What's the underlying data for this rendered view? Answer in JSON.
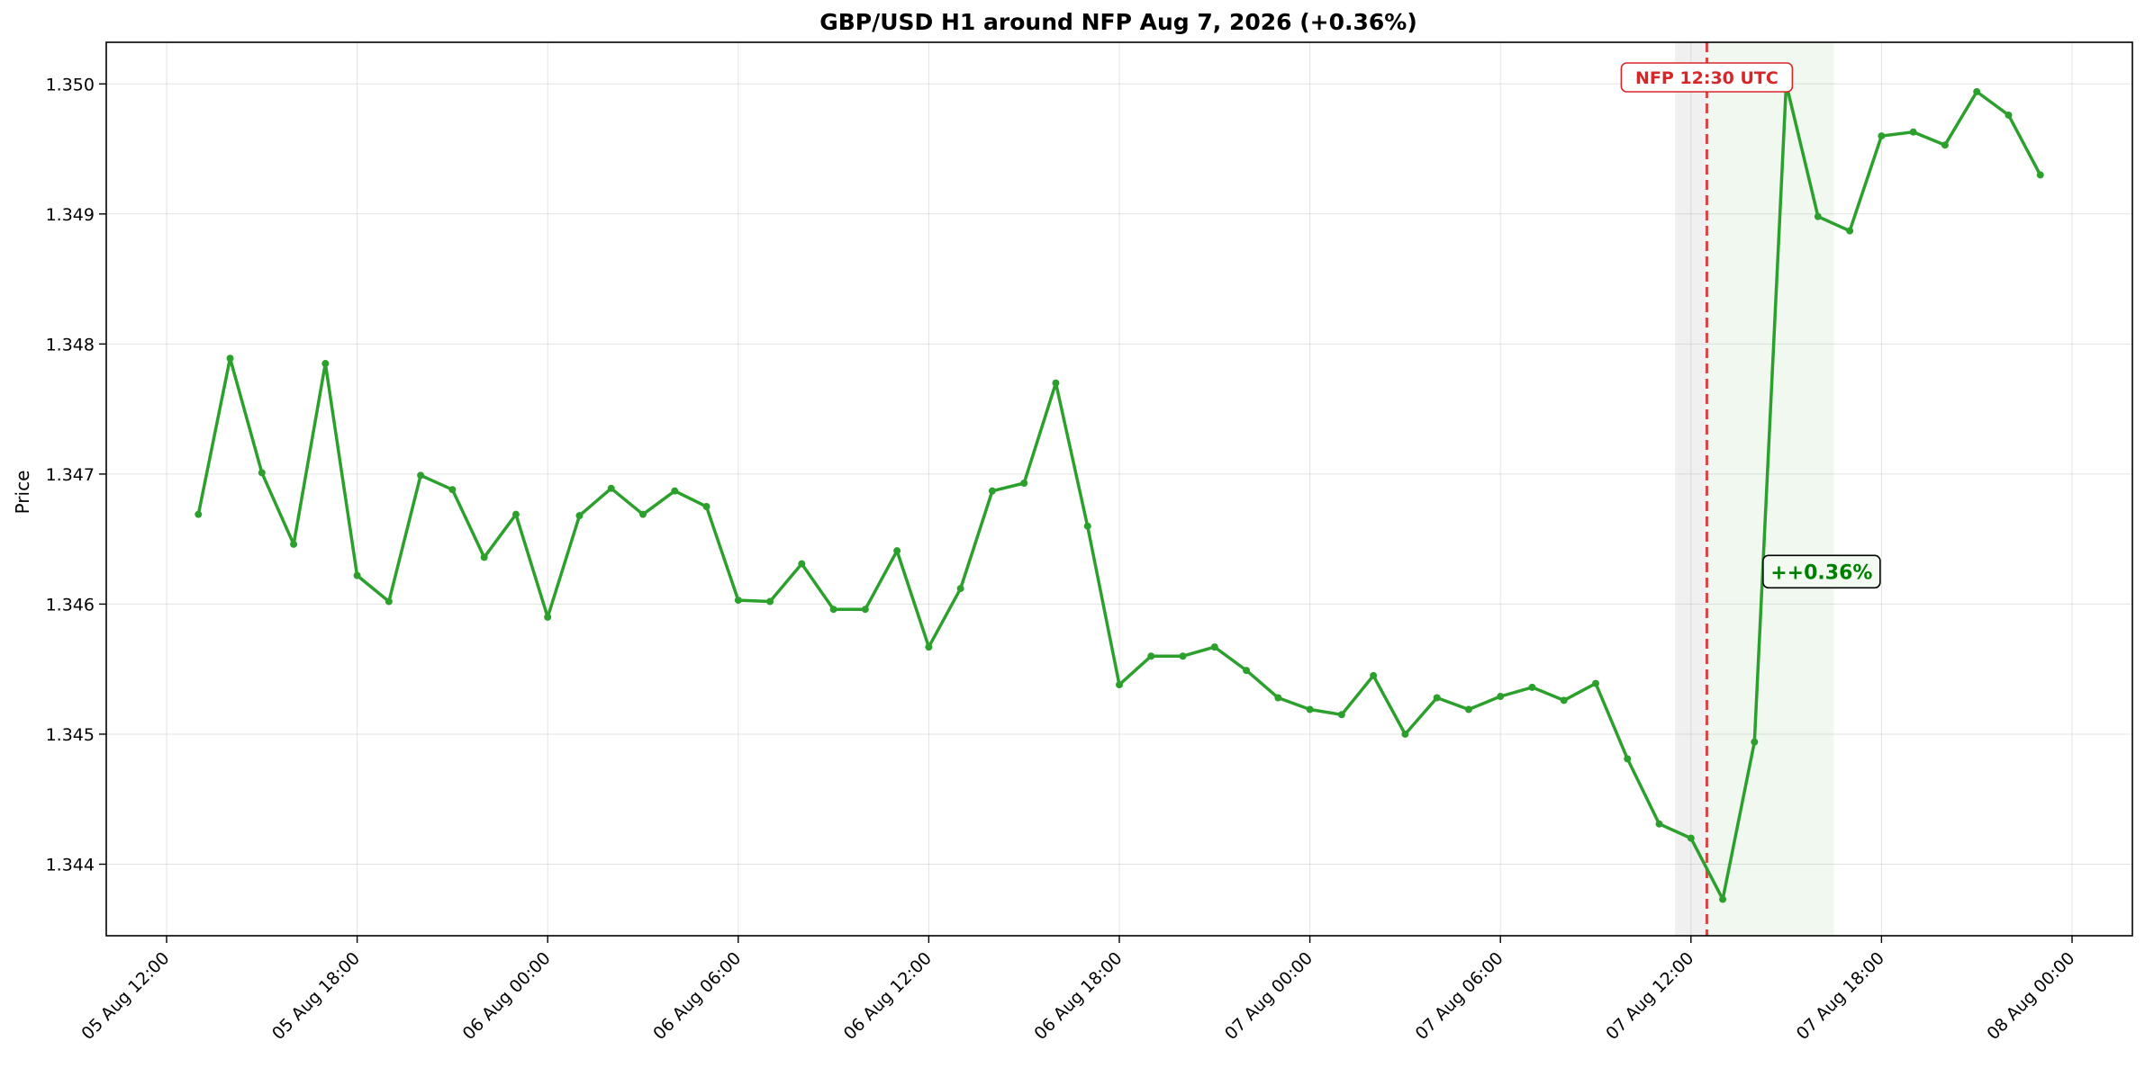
{
  "chart_data": {
    "type": "line",
    "title": "GBP/USD H1 around NFP Aug 7, 2026 (+0.36%)",
    "xlabel": "",
    "ylabel": "Price",
    "xlim": [
      "2026-08-05 10:06",
      "2026-08-08 01:54"
    ],
    "ylim": [
      1.34345,
      1.35032
    ],
    "grid": true,
    "x_ticks": [
      "05 Aug 12:00",
      "05 Aug 18:00",
      "06 Aug 00:00",
      "06 Aug 06:00",
      "06 Aug 12:00",
      "06 Aug 18:00",
      "07 Aug 00:00",
      "07 Aug 06:00",
      "07 Aug 12:00",
      "07 Aug 18:00",
      "08 Aug 00:00"
    ],
    "x_tick_times": [
      "2026-08-05 12:00",
      "2026-08-05 18:00",
      "2026-08-06 00:00",
      "2026-08-06 06:00",
      "2026-08-06 12:00",
      "2026-08-06 18:00",
      "2026-08-07 00:00",
      "2026-08-07 06:00",
      "2026-08-07 12:00",
      "2026-08-07 18:00",
      "2026-08-08 00:00"
    ],
    "y_ticks": [
      "1.344",
      "1.345",
      "1.346",
      "1.347",
      "1.348",
      "1.349",
      "1.350"
    ],
    "y_tick_values": [
      1.344,
      1.345,
      1.346,
      1.347,
      1.348,
      1.349,
      1.35
    ],
    "series": [
      {
        "color": "#2ca02c",
        "points": [
          [
            "2026-08-05 13:00",
            1.34669
          ],
          [
            "2026-08-05 14:00",
            1.34789
          ],
          [
            "2026-08-05 15:00",
            1.34701
          ],
          [
            "2026-08-05 16:00",
            1.34646
          ],
          [
            "2026-08-05 17:00",
            1.34785
          ],
          [
            "2026-08-05 18:00",
            1.34622
          ],
          [
            "2026-08-05 19:00",
            1.34602
          ],
          [
            "2026-08-05 20:00",
            1.34699
          ],
          [
            "2026-08-05 21:00",
            1.34688
          ],
          [
            "2026-08-05 22:00",
            1.34636
          ],
          [
            "2026-08-05 23:00",
            1.34669
          ],
          [
            "2026-08-06 00:00",
            1.3459
          ],
          [
            "2026-08-06 01:00",
            1.34668
          ],
          [
            "2026-08-06 02:00",
            1.34689
          ],
          [
            "2026-08-06 03:00",
            1.34669
          ],
          [
            "2026-08-06 04:00",
            1.34687
          ],
          [
            "2026-08-06 05:00",
            1.34675
          ],
          [
            "2026-08-06 06:00",
            1.34603
          ],
          [
            "2026-08-06 07:00",
            1.34602
          ],
          [
            "2026-08-06 08:00",
            1.34631
          ],
          [
            "2026-08-06 09:00",
            1.34596
          ],
          [
            "2026-08-06 10:00",
            1.34596
          ],
          [
            "2026-08-06 11:00",
            1.34641
          ],
          [
            "2026-08-06 12:00",
            1.34567
          ],
          [
            "2026-08-06 13:00",
            1.34612
          ],
          [
            "2026-08-06 14:00",
            1.34687
          ],
          [
            "2026-08-06 15:00",
            1.34693
          ],
          [
            "2026-08-06 16:00",
            1.3477
          ],
          [
            "2026-08-06 17:00",
            1.3466
          ],
          [
            "2026-08-06 18:00",
            1.34538
          ],
          [
            "2026-08-06 19:00",
            1.3456
          ],
          [
            "2026-08-06 20:00",
            1.3456
          ],
          [
            "2026-08-06 21:00",
            1.34567
          ],
          [
            "2026-08-06 22:00",
            1.34549
          ],
          [
            "2026-08-06 23:00",
            1.34528
          ],
          [
            "2026-08-07 00:00",
            1.34519
          ],
          [
            "2026-08-07 01:00",
            1.34515
          ],
          [
            "2026-08-07 02:00",
            1.34545
          ],
          [
            "2026-08-07 03:00",
            1.345
          ],
          [
            "2026-08-07 04:00",
            1.34528
          ],
          [
            "2026-08-07 05:00",
            1.34519
          ],
          [
            "2026-08-07 06:00",
            1.34529
          ],
          [
            "2026-08-07 07:00",
            1.34536
          ],
          [
            "2026-08-07 08:00",
            1.34526
          ],
          [
            "2026-08-07 09:00",
            1.34539
          ],
          [
            "2026-08-07 10:00",
            1.34481
          ],
          [
            "2026-08-07 11:00",
            1.34431
          ],
          [
            "2026-08-07 12:00",
            1.3442
          ],
          [
            "2026-08-07 13:00",
            1.34373
          ],
          [
            "2026-08-07 14:00",
            1.34494
          ],
          [
            "2026-08-07 15:00",
            1.35
          ],
          [
            "2026-08-07 16:00",
            1.34898
          ],
          [
            "2026-08-07 17:00",
            1.34887
          ],
          [
            "2026-08-07 18:00",
            1.3496
          ],
          [
            "2026-08-07 19:00",
            1.34963
          ],
          [
            "2026-08-07 20:00",
            1.34953
          ],
          [
            "2026-08-07 21:00",
            1.34994
          ],
          [
            "2026-08-07 22:00",
            1.34976
          ],
          [
            "2026-08-07 23:00",
            1.3493
          ]
        ]
      }
    ],
    "event_line": {
      "time": "2026-08-07 12:30",
      "label": "NFP 12:30 UTC",
      "color": "#d62728"
    },
    "shaded_ranges": [
      {
        "from": "2026-08-07 11:30",
        "to": "2026-08-07 12:30",
        "color": "#dddddd"
      },
      {
        "from": "2026-08-07 12:30",
        "to": "2026-08-07 16:30",
        "color": "#2ca02c"
      }
    ],
    "change_label": {
      "text": "++0.36%",
      "time": "2026-08-07 16:00",
      "price": 1.34625,
      "color": "#008000"
    }
  }
}
